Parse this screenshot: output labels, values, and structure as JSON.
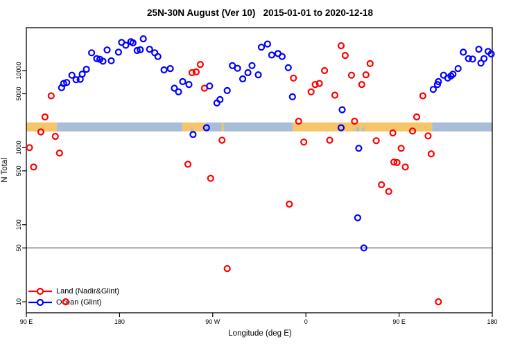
{
  "chart_data": {
    "type": "scatter",
    "title": "25N-30N August (Ver 10)   2015-01-01 to 2020-12-18",
    "xlabel": "Longitude (deg E)",
    "ylabel": "N Total",
    "x_axis": {
      "range": [
        -270,
        180
      ],
      "ticks": [
        {
          "lon": -270,
          "label": "90 E"
        },
        {
          "lon": -180,
          "label": "180"
        },
        {
          "lon": -90,
          "label": "90 W"
        },
        {
          "lon": 0,
          "label": "0"
        },
        {
          "lon": 90,
          "label": "90 E"
        },
        {
          "lon": 180,
          "label": "180"
        }
      ]
    },
    "y_axis": {
      "scale": "log",
      "range": [
        7.2,
        36000
      ],
      "ticks": [
        {
          "value": 10000,
          "label": "10000"
        },
        {
          "value": 5000,
          "label": "5000"
        },
        {
          "value": 1000,
          "label": "1000"
        },
        {
          "value": 500,
          "label": "500"
        },
        {
          "value": 100,
          "label": "100"
        },
        {
          "value": 50,
          "label": "50"
        },
        {
          "value": 10,
          "label": "10"
        }
      ]
    },
    "reference_line": {
      "value": 50,
      "color": "#9b9b9b"
    },
    "land_ocean_strip": {
      "land_color": "#F5C669",
      "ocean_color": "#A8BDD8",
      "value_center": 1800,
      "segments": [
        {
          "type": "land",
          "from": -270,
          "to": -240.5
        },
        {
          "type": "ocean",
          "from": -240.5,
          "to": -119.5
        },
        {
          "type": "land",
          "from": -119.5,
          "to": -97
        },
        {
          "type": "ocean",
          "from": -97,
          "to": -81.5
        },
        {
          "type": "land",
          "from": -81.5,
          "to": -79.5
        },
        {
          "type": "ocean",
          "from": -79.5,
          "to": -12.8
        },
        {
          "type": "land",
          "from": -12.8,
          "to": 122
        },
        {
          "type": "ocean",
          "from": 122,
          "to": 180
        }
      ],
      "inlets": [
        {
          "from": -111,
          "to": -109.5
        },
        {
          "from": 48.5,
          "to": 51.5
        },
        {
          "from": 54.5,
          "to": 56.5
        }
      ]
    },
    "series": [
      {
        "name": "Land (Nadir&Glint)",
        "color": "#FF0000",
        "marker": "open-circle",
        "points": [
          [
            -246,
            4700
          ],
          [
            -252,
            2500
          ],
          [
            -256,
            1600
          ],
          [
            -242,
            1400
          ],
          [
            -267,
            1000
          ],
          [
            -238,
            850
          ],
          [
            -263,
            560
          ],
          [
            -102,
            12000
          ],
          [
            -110,
            9400
          ],
          [
            -106,
            9600
          ],
          [
            -98,
            5900
          ],
          [
            -81,
            1250
          ],
          [
            -114,
            610
          ],
          [
            -92,
            400
          ],
          [
            -76,
            27
          ],
          [
            -12,
            8000
          ],
          [
            9,
            6600
          ],
          [
            13,
            6800
          ],
          [
            5,
            5300
          ],
          [
            18,
            10000
          ],
          [
            28,
            4800
          ],
          [
            34,
            21000
          ],
          [
            38,
            15700
          ],
          [
            44,
            8700
          ],
          [
            62,
            12300
          ],
          [
            58,
            8800
          ],
          [
            54,
            6600
          ],
          [
            -7,
            2200
          ],
          [
            47,
            2200
          ],
          [
            -2,
            1180
          ],
          [
            23,
            1250
          ],
          [
            68,
            1230
          ],
          [
            85,
            650
          ],
          [
            73,
            330
          ],
          [
            80,
            270
          ],
          [
            -16,
            185
          ],
          [
            113,
            4700
          ],
          [
            107,
            2500
          ],
          [
            84,
            1550
          ],
          [
            103,
            1640
          ],
          [
            118,
            1420
          ],
          [
            92,
            980
          ],
          [
            121,
            830
          ],
          [
            88,
            640
          ],
          [
            96,
            560
          ],
          [
            -232,
            10
          ],
          [
            128,
            10
          ]
        ]
      },
      {
        "name": "Ocean (Glint)",
        "color": "#0000FF",
        "marker": "open-circle",
        "points": [
          [
            -236,
            6000
          ],
          [
            -234,
            6800
          ],
          [
            -231,
            7000
          ],
          [
            -226,
            8700
          ],
          [
            -222,
            7600
          ],
          [
            -218,
            7700
          ],
          [
            -216,
            9000
          ],
          [
            -212,
            10400
          ],
          [
            -207,
            17000
          ],
          [
            -202,
            14300
          ],
          [
            -199,
            14000
          ],
          [
            -196,
            13200
          ],
          [
            -192,
            18500
          ],
          [
            -188,
            13400
          ],
          [
            -181,
            17300
          ],
          [
            -178,
            23200
          ],
          [
            -174,
            21300
          ],
          [
            -169,
            23700
          ],
          [
            -167,
            22900
          ],
          [
            -163,
            18200
          ],
          [
            -160,
            18600
          ],
          [
            -157,
            25800
          ],
          [
            -151,
            18900
          ],
          [
            -146,
            17000
          ],
          [
            -143,
            15200
          ],
          [
            -137,
            10200
          ],
          [
            -131,
            10600
          ],
          [
            -127,
            5900
          ],
          [
            -123,
            5300
          ],
          [
            -119,
            7200
          ],
          [
            -113,
            6600
          ],
          [
            -93,
            6300
          ],
          [
            -86,
            3800
          ],
          [
            -83,
            4200
          ],
          [
            -76,
            5500
          ],
          [
            -71,
            11600
          ],
          [
            -66,
            10700
          ],
          [
            -61,
            7800
          ],
          [
            -56,
            9400
          ],
          [
            -52,
            11600
          ],
          [
            -46,
            8800
          ],
          [
            -43,
            20100
          ],
          [
            -37,
            22100
          ],
          [
            -33,
            15900
          ],
          [
            -27,
            16600
          ],
          [
            -23,
            15200
          ],
          [
            -17,
            10900
          ],
          [
            -13,
            4560
          ],
          [
            -96,
            1810
          ],
          [
            -109,
            1480
          ],
          [
            35,
            3100
          ],
          [
            34,
            1810
          ],
          [
            51,
            980
          ],
          [
            50,
            123
          ],
          [
            56,
            50
          ],
          [
            123,
            5700
          ],
          [
            127,
            6600
          ],
          [
            128,
            7200
          ],
          [
            133,
            8700
          ],
          [
            137,
            8000
          ],
          [
            140,
            8500
          ],
          [
            142,
            9000
          ],
          [
            147,
            10600
          ],
          [
            152,
            17300
          ],
          [
            157,
            14300
          ],
          [
            161,
            14100
          ],
          [
            167,
            18900
          ],
          [
            169,
            12500
          ],
          [
            172,
            14300
          ],
          [
            176,
            17700
          ],
          [
            179,
            16400
          ]
        ]
      }
    ]
  }
}
